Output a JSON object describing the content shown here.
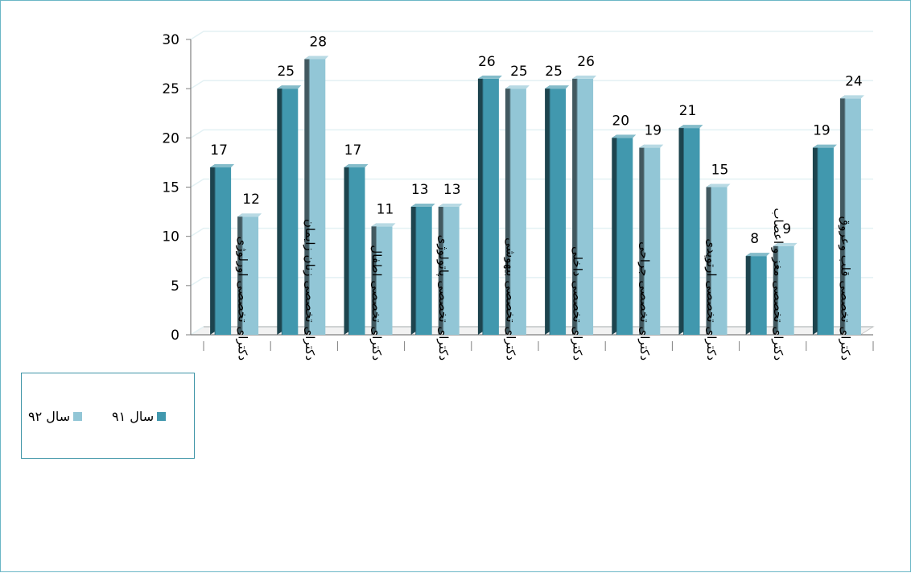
{
  "chart_data": {
    "type": "bar",
    "categories": [
      "دکترای تخصصی اورلوژی",
      "دکترای تخصصی زنان زایمان",
      "دکترای تخصصی اطفال",
      "دکترای تخصصی پاتولوژی",
      "دکترای تخصصی بیهوشی",
      "دکترای تخصصی داخلی",
      "دکترای تخصصی جراحی",
      "دکترای تخصصی ارتوپدی",
      "دکترای تخصصی مغز و اعصاب",
      "دکترای تخصصی قلب وعروق"
    ],
    "series": [
      {
        "name": "سال ۹۱",
        "values": [
          17,
          25,
          17,
          13,
          26,
          25,
          20,
          21,
          8,
          19
        ],
        "color": "#4198ae"
      },
      {
        "name": "سال ۹۲",
        "values": [
          12,
          28,
          11,
          13,
          25,
          26,
          19,
          15,
          9,
          24
        ],
        "color": "#92c6d6"
      }
    ],
    "ylim": [
      0,
      30
    ],
    "yticks": [
      0,
      5,
      10,
      15,
      20,
      25,
      30
    ],
    "grid": true,
    "legend_position": "left",
    "style": "3d-clustered-column"
  }
}
